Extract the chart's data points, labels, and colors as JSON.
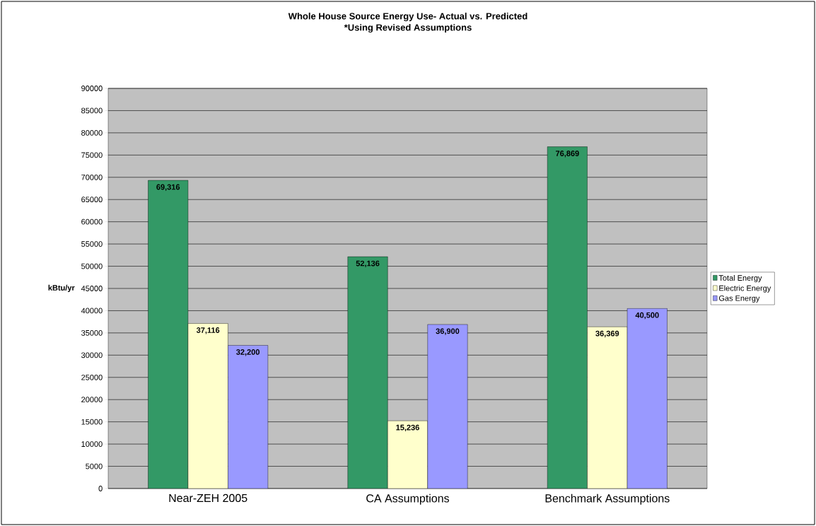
{
  "chart_data": {
    "type": "bar",
    "title": "Whole House Source Energy Use- Actual vs. Predicted",
    "subtitle": "*Using Revised Assumptions",
    "ylabel": "kBtu/yr",
    "categories": [
      "Near-ZEH 2005",
      "CA Assumptions",
      "Benchmark Assumptions"
    ],
    "series": [
      {
        "name": "Total Energy",
        "color": "#339966",
        "values": [
          69316,
          52136,
          76869
        ],
        "value_labels": [
          "69,316",
          "52,136",
          "76,869"
        ]
      },
      {
        "name": "Electric Energy",
        "color": "#ffffcc",
        "values": [
          37116,
          15236,
          36369
        ],
        "value_labels": [
          "37,116",
          "15,236",
          "36,369"
        ]
      },
      {
        "name": "Gas Energy",
        "color": "#9999ff",
        "values": [
          32200,
          36900,
          40500
        ],
        "value_labels": [
          "32,200",
          "36,900",
          "40,500"
        ]
      }
    ],
    "ylim": [
      0,
      90000
    ],
    "yticks": [
      0,
      5000,
      10000,
      15000,
      20000,
      25000,
      30000,
      35000,
      40000,
      45000,
      50000,
      55000,
      60000,
      65000,
      70000,
      75000,
      80000,
      85000,
      90000
    ],
    "grid": "y",
    "legend": "right"
  }
}
